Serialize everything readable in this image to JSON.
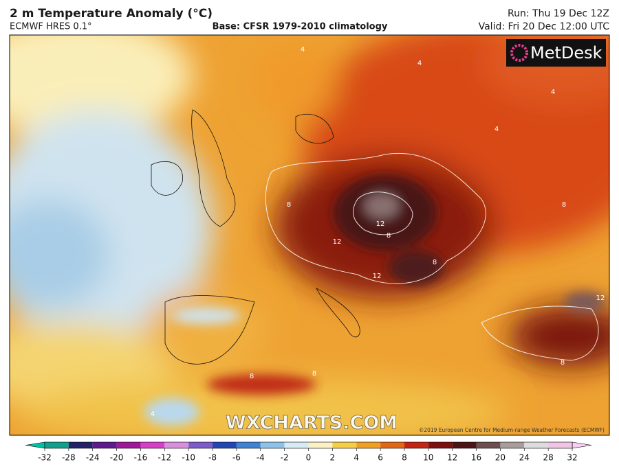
{
  "header": {
    "title": "2 m Temperature Anomaly (°C)",
    "model": "ECMWF HRES 0.1°",
    "base": "Base: CFSR 1979-2010 climatology",
    "run": "Run: Thu 19 Dec 12Z",
    "valid": "Valid: Fri 20 Dec 12:00 UTC"
  },
  "logo": "MetDesk",
  "watermark": "WXCHARTS.COM",
  "copyright": "©2019 European Centre for Medium-range Weather Forecasts (ECMWF)",
  "contour_labels": [
    4,
    4,
    4,
    4,
    8,
    8,
    12,
    8,
    12,
    8,
    12,
    8,
    4,
    8,
    8,
    12
  ],
  "colorbar": {
    "ticks": [
      -32,
      -28,
      -24,
      -20,
      -16,
      -12,
      -10,
      -8,
      -6,
      -4,
      -2,
      0,
      2,
      4,
      6,
      8,
      10,
      12,
      16,
      20,
      24,
      28,
      32
    ],
    "colors": [
      "#12a08c",
      "#25206a",
      "#5e1a8e",
      "#a0189a",
      "#d63fc8",
      "#d890dc",
      "#7c5cc8",
      "#2446b4",
      "#3f82d4",
      "#8ec2e8",
      "#d6ebf4",
      "#fbf1c4",
      "#f4cf45",
      "#efa024",
      "#e26614",
      "#c42412",
      "#7e1110",
      "#4c1616",
      "#6c5050",
      "#a89c9c",
      "#dcdcdc",
      "#f0c4e4"
    ],
    "low_color": "#00c2a2",
    "high_color": "#f8cdf2"
  }
}
